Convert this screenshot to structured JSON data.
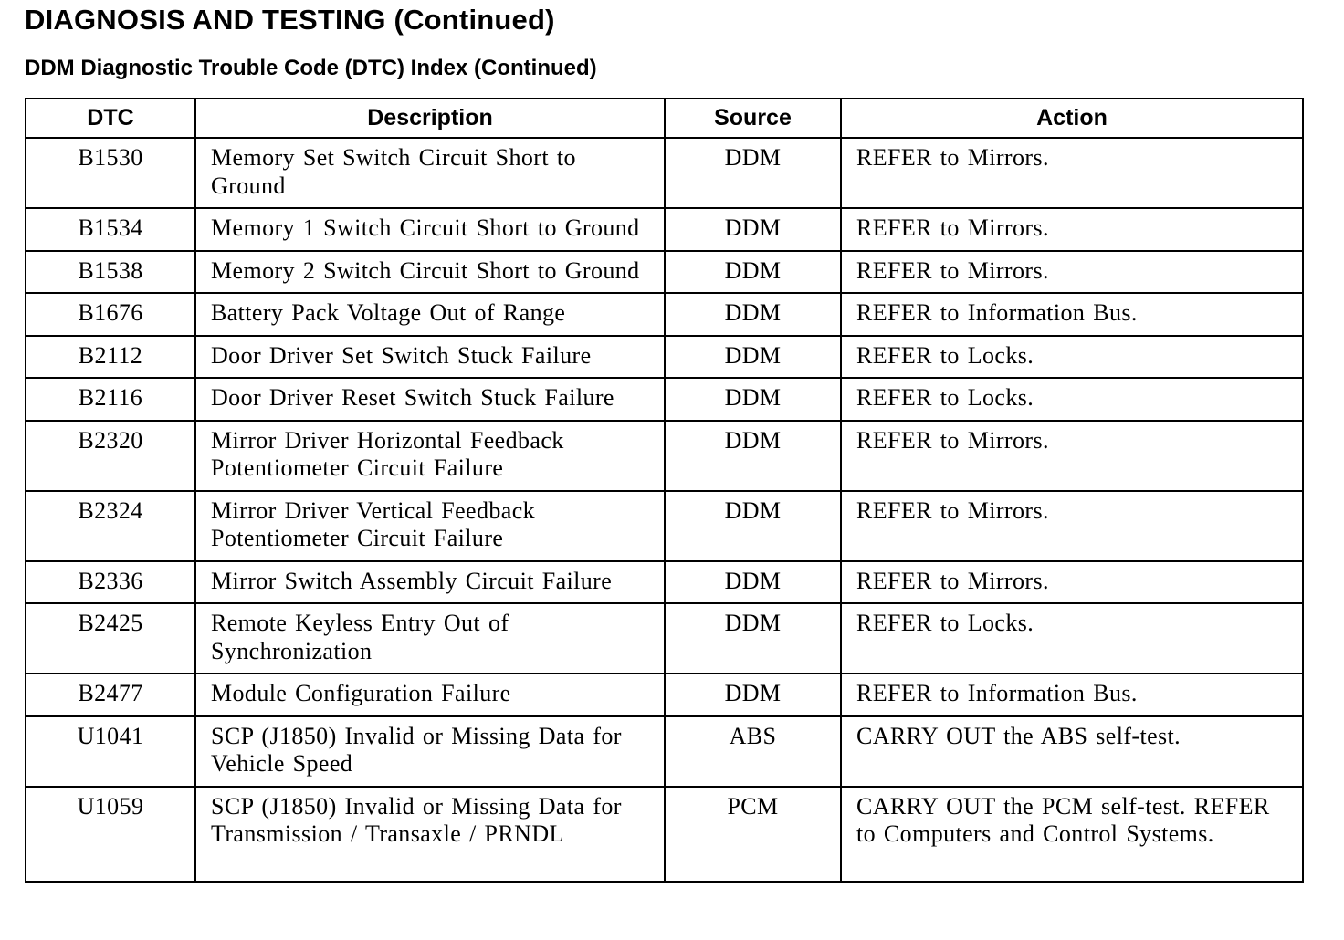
{
  "title": "DIAGNOSIS AND TESTING (Continued)",
  "subtitle": "DDM Diagnostic Trouble Code (DTC) Index (Continued)",
  "table": {
    "headers": [
      "DTC",
      "Description",
      "Source",
      "Action"
    ],
    "rows": [
      {
        "dtc": "B1530",
        "description": "Memory Set Switch Circuit Short to Ground",
        "source": "DDM",
        "action": "REFER to Mirrors."
      },
      {
        "dtc": "B1534",
        "description": "Memory 1 Switch Circuit Short to Ground",
        "source": "DDM",
        "action": "REFER to Mirrors."
      },
      {
        "dtc": "B1538",
        "description": "Memory 2 Switch Circuit Short to Ground",
        "source": "DDM",
        "action": "REFER to Mirrors."
      },
      {
        "dtc": "B1676",
        "description": "Battery Pack Voltage Out of Range",
        "source": "DDM",
        "action": "REFER to Information Bus."
      },
      {
        "dtc": "B2112",
        "description": "Door Driver Set Switch Stuck Failure",
        "source": "DDM",
        "action": "REFER to Locks."
      },
      {
        "dtc": "B2116",
        "description": "Door Driver Reset Switch Stuck Failure",
        "source": "DDM",
        "action": "REFER to Locks."
      },
      {
        "dtc": "B2320",
        "description": "Mirror Driver Horizontal Feedback Potentiometer Circuit Failure",
        "source": "DDM",
        "action": "REFER to Mirrors."
      },
      {
        "dtc": "B2324",
        "description": "Mirror Driver Vertical Feedback Potentiometer Circuit Failure",
        "source": "DDM",
        "action": "REFER to Mirrors."
      },
      {
        "dtc": "B2336",
        "description": "Mirror Switch Assembly Circuit Failure",
        "source": "DDM",
        "action": "REFER to Mirrors."
      },
      {
        "dtc": "B2425",
        "description": "Remote Keyless Entry Out of Synchronization",
        "source": "DDM",
        "action": "REFER to Locks."
      },
      {
        "dtc": "B2477",
        "description": "Module Configuration Failure",
        "source": "DDM",
        "action": "REFER to Information Bus."
      },
      {
        "dtc": "U1041",
        "description": "SCP (J1850) Invalid or Missing Data for Vehicle Speed",
        "source": "ABS",
        "action": "CARRY OUT the ABS self-test."
      },
      {
        "dtc": "U1059",
        "description": "SCP (J1850) Invalid or Missing Data for Transmission / Transaxle / PRNDL",
        "source": "PCM",
        "action": "CARRY OUT the PCM self-test. REFER to Computers and Control Systems."
      }
    ]
  }
}
